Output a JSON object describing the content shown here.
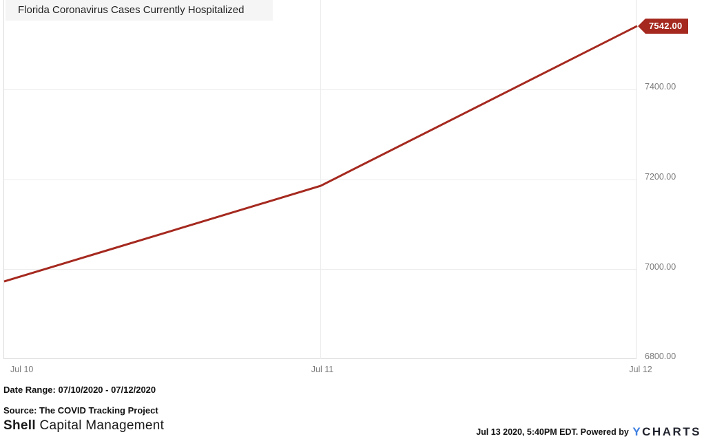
{
  "title": "Florida Coronavirus Cases Currently Hospitalized",
  "chart_data": {
    "type": "line",
    "title": "Florida Coronavirus Cases Currently Hospitalized",
    "x": [
      "Jul 10",
      "Jul 11",
      "Jul 12"
    ],
    "series": [
      {
        "name": "Florida Coronavirus Cases Currently Hospitalized",
        "values": [
          6973,
          7186,
          7542
        ]
      }
    ],
    "xlabel": "",
    "ylabel": "",
    "ylim": [
      6800,
      7600
    ],
    "yticks": [
      6800,
      7000,
      7200,
      7400
    ],
    "ytick_labels": [
      "6800.00",
      "7000.00",
      "7200.00",
      "7400.00"
    ],
    "xtick_labels": [
      "Jul 10",
      "Jul 11",
      "Jul 12"
    ],
    "end_label": "7542.00",
    "grid": true,
    "legend_position": "none",
    "line_color": "#a5291f"
  },
  "footer": {
    "date_range": "Date Range: 07/10/2020 - 07/12/2020",
    "source": "Source: The COVID Tracking Project",
    "brand_bold": "Shell",
    "brand_rest": " Capital Management",
    "timestamp": "Jul 13 2020, 5:40PM EDT. Powered by ",
    "ycharts_y": "Y",
    "ycharts_rest": "CHARTS"
  },
  "colors": {
    "line": "#a5291f",
    "badge_bg": "#a5291f",
    "badge_text": "#ffffff",
    "gridline": "#ececec",
    "axis_text": "#7a7a7a",
    "title_bg": "#f5f5f5",
    "ycharts_blue": "#3f7fe0"
  }
}
